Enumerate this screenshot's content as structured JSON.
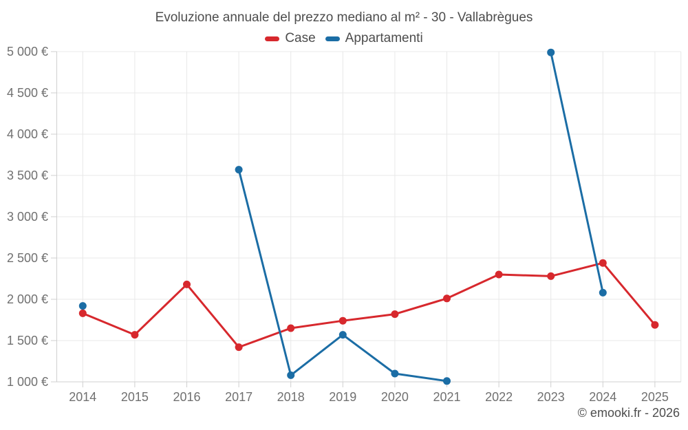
{
  "title": "Evoluzione annuale del prezzo mediano al m² - 30 - Vallabrègues",
  "footer": {
    "copyright": "© emooki.fr - 2026"
  },
  "colors": {
    "case_red": "#d7282d",
    "appartamenti_blue": "#1b6da5",
    "gridline": "#e8e8e8",
    "axis_line": "#cfcfcf",
    "axis_text": "#707070",
    "title_text": "#4d4d4d"
  },
  "chart_data": {
    "type": "line",
    "title": "Evoluzione annuale del prezzo mediano al m² - 30 - Vallabrègues",
    "xlabel": "",
    "ylabel": "",
    "grid": true,
    "legend_position": "top",
    "categories": [
      "2014",
      "2015",
      "2016",
      "2017",
      "2018",
      "2019",
      "2020",
      "2021",
      "2022",
      "2023",
      "2024",
      "2025"
    ],
    "ylim": [
      1000,
      5000
    ],
    "y_ticks": [
      {
        "value": 1000,
        "label": "1 000 €"
      },
      {
        "value": 1500,
        "label": "1 500 €"
      },
      {
        "value": 2000,
        "label": "2 000 €"
      },
      {
        "value": 2500,
        "label": "2 500 €"
      },
      {
        "value": 3000,
        "label": "3 000 €"
      },
      {
        "value": 3500,
        "label": "3 500 €"
      },
      {
        "value": 4000,
        "label": "4 000 €"
      },
      {
        "value": 4500,
        "label": "4 500 €"
      },
      {
        "value": 5000,
        "label": "5 000 €"
      }
    ],
    "series": [
      {
        "name": "Case",
        "color": "#d7282d",
        "values": [
          1830,
          1570,
          2180,
          1420,
          1650,
          1740,
          1820,
          2010,
          2300,
          2280,
          2440,
          1690
        ]
      },
      {
        "name": "Appartamenti",
        "color": "#1b6da5",
        "values": [
          1920,
          null,
          null,
          3570,
          1080,
          1570,
          1100,
          1010,
          null,
          4990,
          2080,
          null
        ]
      }
    ]
  }
}
